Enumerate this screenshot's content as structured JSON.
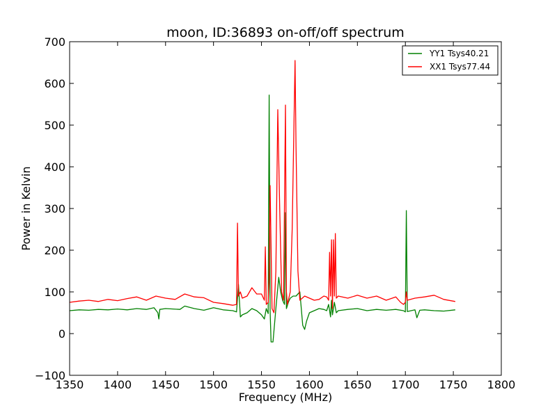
{
  "chart_data": {
    "type": "line",
    "title": "moon, ID:36893 on-off/off spectrum",
    "xlabel": "Frequency (MHz)",
    "ylabel": "Power in Kelvin",
    "xlim": [
      1350,
      1800
    ],
    "ylim": [
      -100,
      700
    ],
    "xticks": [
      "1350",
      "1400",
      "1450",
      "1500",
      "1550",
      "1600",
      "1650",
      "1700",
      "1750",
      "1800"
    ],
    "yticks": [
      "−100",
      "0",
      "100",
      "200",
      "300",
      "400",
      "500",
      "600",
      "700"
    ],
    "grid": false,
    "legend_position": "top-right",
    "series": [
      {
        "name": "YY1 Tsys40.21",
        "color": "#008000",
        "x": [
          1350,
          1360,
          1370,
          1380,
          1390,
          1400,
          1410,
          1420,
          1430,
          1438,
          1442,
          1443,
          1444,
          1450,
          1465,
          1470,
          1480,
          1490,
          1500,
          1510,
          1520,
          1524,
          1526,
          1528,
          1530,
          1535,
          1540,
          1545,
          1550,
          1553,
          1555,
          1557,
          1558,
          1559,
          1560,
          1562,
          1565,
          1568,
          1570,
          1572,
          1574,
          1575,
          1576,
          1578,
          1580,
          1583,
          1586,
          1590,
          1593,
          1595,
          1597,
          1600,
          1605,
          1610,
          1615,
          1618,
          1620,
          1622,
          1623,
          1624,
          1626,
          1628,
          1630,
          1640,
          1650,
          1660,
          1670,
          1680,
          1690,
          1698,
          1700,
          1701,
          1702,
          1710,
          1712,
          1715,
          1720,
          1730,
          1740,
          1752
        ],
        "y": [
          55,
          57,
          56,
          58,
          57,
          59,
          57,
          60,
          58,
          62,
          50,
          35,
          58,
          60,
          58,
          66,
          60,
          56,
          62,
          57,
          55,
          52,
          118,
          40,
          45,
          50,
          60,
          55,
          45,
          35,
          60,
          48,
          572,
          55,
          -20,
          -20,
          60,
          135,
          100,
          80,
          70,
          290,
          60,
          75,
          85,
          90,
          90,
          100,
          20,
          10,
          30,
          50,
          55,
          60,
          58,
          55,
          70,
          40,
          80,
          45,
          75,
          50,
          55,
          58,
          60,
          55,
          58,
          56,
          58,
          55,
          52,
          295,
          53,
          57,
          38,
          56,
          57,
          55,
          54,
          57
        ]
      },
      {
        "name": "XX1 Tsys77.44",
        "color": "#ff0000",
        "x": [
          1350,
          1360,
          1370,
          1380,
          1390,
          1400,
          1410,
          1420,
          1430,
          1440,
          1450,
          1460,
          1470,
          1480,
          1490,
          1500,
          1510,
          1520,
          1524,
          1525,
          1526,
          1528,
          1530,
          1535,
          1540,
          1545,
          1550,
          1553,
          1554,
          1555,
          1557,
          1558,
          1559,
          1561,
          1563,
          1565,
          1567,
          1569,
          1571,
          1573,
          1575,
          1576,
          1577,
          1580,
          1582,
          1584,
          1585,
          1586,
          1588,
          1590,
          1595,
          1600,
          1605,
          1610,
          1615,
          1618,
          1620,
          1621,
          1622,
          1623,
          1624,
          1625,
          1626,
          1627,
          1628,
          1630,
          1640,
          1650,
          1660,
          1670,
          1680,
          1690,
          1695,
          1698,
          1700,
          1701,
          1702,
          1710,
          1720,
          1730,
          1740,
          1752
        ],
        "y": [
          75,
          78,
          80,
          77,
          82,
          79,
          84,
          88,
          80,
          90,
          85,
          82,
          95,
          88,
          86,
          75,
          72,
          68,
          70,
          265,
          90,
          100,
          85,
          90,
          110,
          95,
          95,
          80,
          208,
          70,
          75,
          130,
          355,
          60,
          50,
          150,
          537,
          300,
          100,
          80,
          548,
          100,
          70,
          100,
          250,
          520,
          655,
          450,
          150,
          80,
          90,
          85,
          80,
          82,
          90,
          88,
          80,
          195,
          90,
          225,
          60,
          225,
          90,
          240,
          85,
          90,
          85,
          92,
          85,
          90,
          80,
          88,
          75,
          70,
          75,
          100,
          80,
          85,
          88,
          92,
          82,
          77
        ]
      }
    ]
  }
}
